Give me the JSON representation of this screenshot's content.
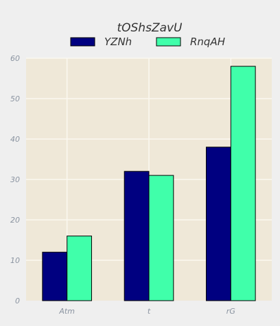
{
  "chart_data": {
    "type": "bar",
    "title": "",
    "xlabel": "",
    "ylabel": "",
    "legend_title": "tOShsZavU",
    "legend_position": "top-center",
    "categories": [
      "Atm",
      "t",
      "rG"
    ],
    "series": [
      {
        "name": "YZNh",
        "values": [
          12,
          32,
          38
        ],
        "color": "#000080"
      },
      {
        "name": "RnqAH",
        "values": [
          16,
          31,
          58
        ],
        "color": "#40ffaa"
      }
    ],
    "ylim": [
      0,
      60
    ],
    "yticks": [
      0,
      10,
      20,
      30,
      40,
      50,
      60
    ],
    "grid": true,
    "colors": {
      "page_background": "#efefef",
      "plot_background": "#efe8d8",
      "grid": "#fbf8f0",
      "bar_edge": "#000000"
    }
  }
}
